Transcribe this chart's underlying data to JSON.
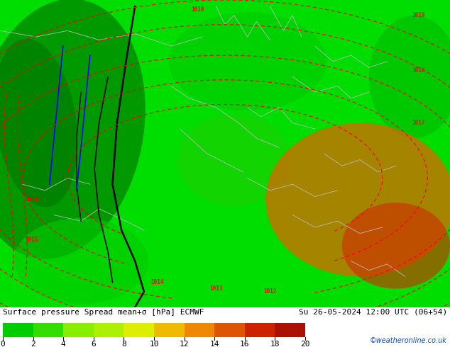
{
  "title": "Surface pressure Spread mean+σ [hPa] ECMWF",
  "title2": "Su 26-05-2024 12:00 UTC (06+54)",
  "watermark": "©weatheronline.co.uk",
  "colorbar_ticks": [
    0,
    2,
    4,
    6,
    8,
    10,
    12,
    14,
    16,
    18,
    20
  ],
  "cbar_colors": [
    "#00cc00",
    "#33dd00",
    "#88ee00",
    "#aaf000",
    "#ddee00",
    "#eebb00",
    "#ee8800",
    "#dd5500",
    "#cc2200",
    "#aa1100",
    "#770000"
  ],
  "map_base_color": "#00dd00",
  "dark_green": "#00aa00",
  "fig_width": 6.34,
  "fig_height": 4.9,
  "dpi": 100,
  "label_fontsize": 8,
  "cb_label_fontsize": 8,
  "watermark_color": "#1144cc",
  "bottom_bar_height": 0.115
}
